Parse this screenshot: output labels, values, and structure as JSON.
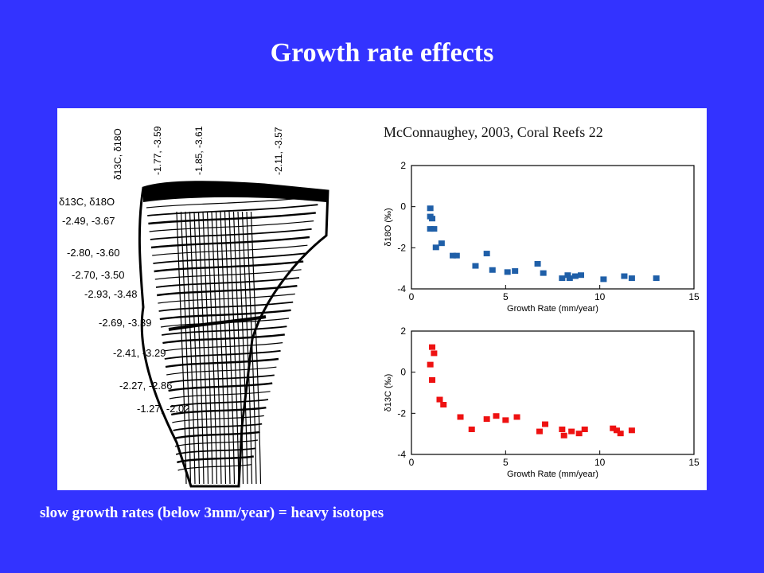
{
  "slide": {
    "title": "Growth rate effects",
    "citation": "McConnaughey, 2003, Coral Reefs 22",
    "caption": "slow growth rates (below 3mm/year) = heavy isotopes"
  },
  "coral": {
    "top_header": "δ13C, δ18O",
    "top_labels": [
      "-1.77, -3.59",
      "-1.85, -3.61",
      "-2.11, -3.57"
    ],
    "side_header": "δ13C, δ18O",
    "side_labels": [
      "-2.49, -3.67",
      "-2.80, -3.60",
      "-2.70, -3.50",
      "-2.93, -3.48",
      "-2.69, -3.39",
      "-2.41, -3.29",
      "-2.27, -2.86",
      "-1.27, -2.02"
    ]
  },
  "colors": {
    "background": "#3333ff",
    "o18_series": "#1f5fa8",
    "c13_series": "#ee1111"
  },
  "chart_data": [
    {
      "type": "scatter",
      "xlabel": "Growth Rate (mm/year)",
      "ylabel": "δ18O (‰)",
      "xlim": [
        0,
        15
      ],
      "ylim": [
        -4,
        2
      ],
      "xticks": [
        0,
        5,
        10,
        15
      ],
      "yticks": [
        -4,
        -2,
        0,
        2
      ],
      "series": [
        {
          "color": "#1f5fa8",
          "points": [
            [
              1.0,
              -0.1
            ],
            [
              1.0,
              -0.5
            ],
            [
              1.1,
              -0.6
            ],
            [
              1.0,
              -1.1
            ],
            [
              1.2,
              -1.1
            ],
            [
              1.3,
              -2.0
            ],
            [
              1.6,
              -1.8
            ],
            [
              2.2,
              -2.4
            ],
            [
              2.4,
              -2.4
            ],
            [
              3.4,
              -2.9
            ],
            [
              4.0,
              -2.3
            ],
            [
              4.3,
              -3.1
            ],
            [
              5.1,
              -3.2
            ],
            [
              5.5,
              -3.15
            ],
            [
              6.7,
              -2.8
            ],
            [
              7.0,
              -3.25
            ],
            [
              8.0,
              -3.5
            ],
            [
              8.3,
              -3.35
            ],
            [
              8.4,
              -3.5
            ],
            [
              8.7,
              -3.4
            ],
            [
              9.0,
              -3.35
            ],
            [
              10.2,
              -3.55
            ],
            [
              11.3,
              -3.4
            ],
            [
              11.7,
              -3.5
            ],
            [
              13.0,
              -3.5
            ]
          ]
        }
      ]
    },
    {
      "type": "scatter",
      "xlabel": "Growth Rate (mm/year)",
      "ylabel": "δ13C (‰)",
      "xlim": [
        0,
        15
      ],
      "ylim": [
        -4,
        2
      ],
      "xticks": [
        0,
        5,
        10,
        15
      ],
      "yticks": [
        -4,
        -2,
        0,
        2
      ],
      "series": [
        {
          "color": "#ee1111",
          "points": [
            [
              1.1,
              1.2
            ],
            [
              1.2,
              0.9
            ],
            [
              1.0,
              0.35
            ],
            [
              1.1,
              -0.4
            ],
            [
              1.5,
              -1.35
            ],
            [
              1.7,
              -1.6
            ],
            [
              2.6,
              -2.2
            ],
            [
              3.2,
              -2.8
            ],
            [
              4.0,
              -2.3
            ],
            [
              4.5,
              -2.15
            ],
            [
              5.0,
              -2.35
            ],
            [
              5.6,
              -2.2
            ],
            [
              6.8,
              -2.9
            ],
            [
              7.1,
              -2.55
            ],
            [
              8.0,
              -2.8
            ],
            [
              8.1,
              -3.1
            ],
            [
              8.5,
              -2.9
            ],
            [
              8.9,
              -3.0
            ],
            [
              9.2,
              -2.8
            ],
            [
              10.7,
              -2.75
            ],
            [
              10.9,
              -2.85
            ],
            [
              11.1,
              -3.0
            ],
            [
              11.7,
              -2.85
            ]
          ]
        }
      ]
    }
  ]
}
